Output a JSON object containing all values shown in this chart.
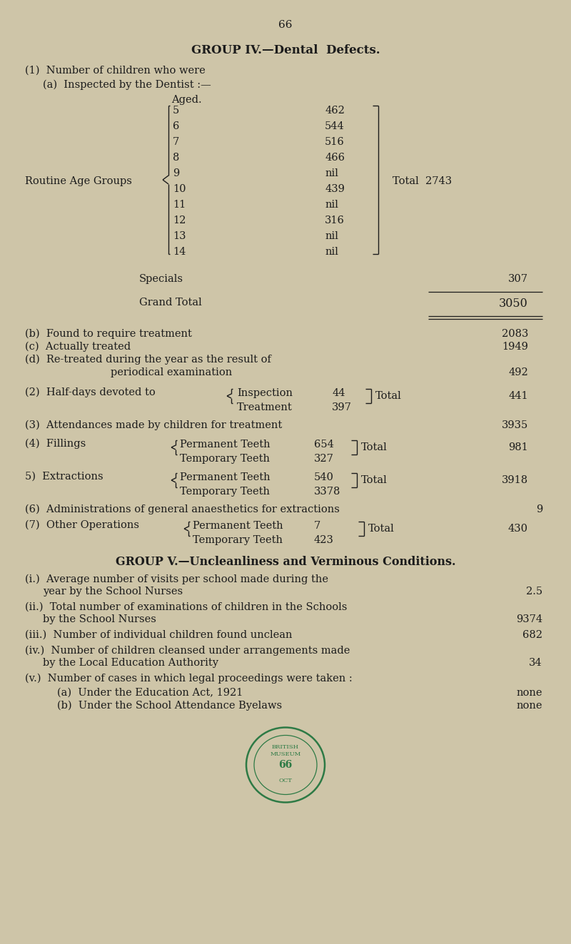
{
  "page_number": "66",
  "bg_color": "#cec5a8",
  "text_color": "#1c1c1c",
  "title_group4_bold": "GROUP IV.",
  "title_group4_normal": "—Dental  Defects.",
  "title_group5": "GROUP V.—Uncleanliness and Verminous Conditions.",
  "line1": "(1)  Number of children who were",
  "line2": "(a)  Inspected by the Dentist :—",
  "line3": "Aged.",
  "routine_label": "Routine Age Groups",
  "ages": [
    "5",
    "6",
    "7",
    "8",
    "9",
    "10",
    "11",
    "12",
    "13",
    "14"
  ],
  "age_values": [
    "462",
    "544",
    "516",
    "466",
    "nil",
    "439",
    "nil",
    "316",
    "nil",
    "nil"
  ],
  "total_label": "Total  2743",
  "specials_label": "Specials",
  "specials_value": "307",
  "grand_total_label": "Grand Total",
  "grand_total_value": "3050",
  "b_line": "(b)  Found to require treatment",
  "b_value": "2083",
  "c_line": "(c)  Actually treated",
  "c_value": "1949",
  "d_line": "(d)  Re-treated during the year as the result of",
  "d_line2": "periodical examination",
  "d_value": "492",
  "item2_label": "(2)  Half-days devoted to",
  "item2_insp": "Inspection",
  "item2_insp_val": "44",
  "item2_treat": "Treatment",
  "item2_treat_val": "397",
  "item2_total": "Total",
  "item2_total_val": "441",
  "item3_label": "(3)  Attendances made by children for treatment",
  "item3_value": "3935",
  "item4_label": "(4)  Fillings",
  "item4_perm": "Permanent Teeth",
  "item4_perm_val": "654",
  "item4_temp": "Temporary Teeth",
  "item4_temp_val": "327",
  "item4_total": "Total",
  "item4_total_val": "981",
  "item5_label": "5)  Extractions",
  "item5_perm": "Permanent Teeth",
  "item5_perm_val": "540",
  "item5_temp": "Temporary Teeth",
  "item5_temp_val": "3378",
  "item5_total": "Total",
  "item5_total_val": "3918",
  "item6_label": "(6)  Administrations of general anaesthetics for extractions",
  "item6_value": "9",
  "item7_label": "(7)  Other Operations",
  "item7_perm": "Permanent Teeth",
  "item7_perm_val": "7",
  "item7_temp": "Temporary Teeth",
  "item7_temp_val": "423",
  "item7_total": "Total",
  "item7_total_val": "430",
  "g5_i_label": "(i.)  Average number of visits per school made during the",
  "g5_i_label2": "year by the School Nurses",
  "g5_i_value": "2.5",
  "g5_ii_label": "(ii.)  Total number of examinations of children in the Schools",
  "g5_ii_label2": "by the School Nurses",
  "g5_ii_value": "9374",
  "g5_iii_label": "(iii.)  Number of individual children found unclean",
  "g5_iii_value": "682",
  "g5_iv_label": "(iv.)  Number of children cleansed under arrangements made",
  "g5_iv_label2": "by the Local Education Authority",
  "g5_iv_value": "34",
  "g5_v_label": "(v.)  Number of cases in which legal proceedings were taken :",
  "g5_va_label": "(a)  Under the Education Act, 1921",
  "g5_va_value": "none",
  "g5_vb_label": "(b)  Under the School Attendance Byelaws",
  "g5_vb_value": "none",
  "stamp_color": "#2d7a45"
}
